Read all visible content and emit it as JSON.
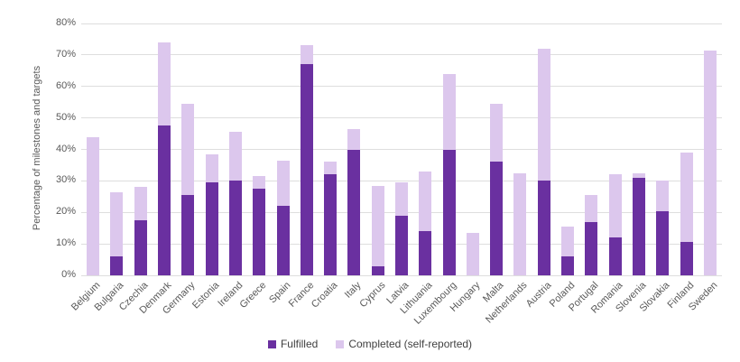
{
  "chart_data": {
    "type": "bar",
    "variant": "overlay-stacked",
    "title": "",
    "xlabel": "",
    "ylabel": "Percentage of milestones and targets",
    "ylim": [
      0,
      80
    ],
    "ytick_step": 10,
    "ytick_labels": [
      "0%",
      "10%",
      "20%",
      "30%",
      "40%",
      "50%",
      "60%",
      "70%",
      "80%"
    ],
    "grid": "horizontal",
    "legend_position": "bottom",
    "categories": [
      "Belgium",
      "Bulgaria",
      "Czechia",
      "Denmark",
      "Germany",
      "Estonia",
      "Ireland",
      "Greece",
      "Spain",
      "France",
      "Croatia",
      "Italy",
      "Cyprus",
      "Latvia",
      "Lithuania",
      "Luxembourg",
      "Hungary",
      "Malta",
      "Netherlands",
      "Austria",
      "Poland",
      "Portugal",
      "Romania",
      "Slovenia",
      "Slovakia",
      "Finland",
      "Sweden"
    ],
    "series": [
      {
        "name": "Fulfilled",
        "color": "#6a30a0",
        "values": [
          0,
          6,
          17.5,
          47.5,
          25.5,
          29.5,
          30,
          27.5,
          22,
          67,
          32,
          40,
          3,
          19,
          14,
          40,
          0,
          36,
          0,
          30,
          6,
          17,
          12,
          31,
          20.5,
          10.5,
          0
        ]
      },
      {
        "name": "Completed (self-reported)",
        "color": "#dcc7ed",
        "values": [
          44,
          26.5,
          28,
          74,
          54.5,
          38.5,
          45.5,
          31.5,
          36.5,
          73,
          36,
          46.5,
          28.5,
          29.5,
          33,
          64,
          13.5,
          54.5,
          32.5,
          72,
          15.5,
          25.5,
          32,
          32.5,
          30,
          39,
          71.5
        ]
      }
    ],
    "colors": {
      "axis_text": "#595959",
      "gridline": "#dedede",
      "legend_text": "#3f3f3f",
      "background": "#ffffff"
    }
  }
}
